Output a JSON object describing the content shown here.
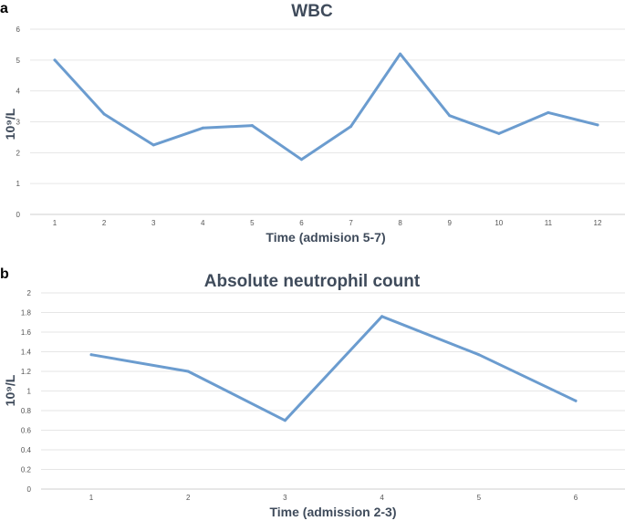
{
  "chart_data": [
    {
      "panel": "a",
      "type": "line",
      "title": "WBC",
      "xlabel": "Time (admision 5-7)",
      "ylabel": "10⁹/L",
      "x": [
        1,
        2,
        3,
        4,
        5,
        6,
        7,
        8,
        9,
        10,
        11,
        12
      ],
      "values": [
        5.0,
        3.25,
        2.25,
        2.8,
        2.88,
        1.78,
        2.85,
        5.2,
        3.2,
        2.62,
        3.3,
        2.9
      ],
      "ylim": [
        0,
        6
      ],
      "yticks": [
        0,
        1,
        2,
        3,
        4,
        5,
        6
      ],
      "grid": true,
      "color": "#6b9ccf"
    },
    {
      "panel": "b",
      "type": "line",
      "title": "Absolute neutrophil count",
      "xlabel": "Time (admission  2-3)",
      "ylabel": "10⁹/L",
      "x": [
        1,
        2,
        3,
        4,
        5,
        6
      ],
      "values": [
        1.37,
        1.2,
        0.7,
        1.76,
        1.37,
        0.9
      ],
      "ylim": [
        0,
        2
      ],
      "yticks": [
        0,
        0.2,
        0.4,
        0.6,
        0.8,
        1,
        1.2,
        1.4,
        1.6,
        1.8,
        2
      ],
      "grid": true,
      "color": "#6b9ccf"
    }
  ]
}
